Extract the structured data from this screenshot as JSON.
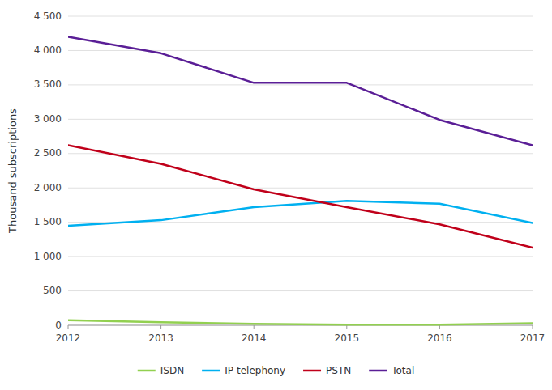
{
  "chart_data": {
    "type": "line",
    "y_label": "Thousand subscriptions",
    "x": [
      2012,
      2013,
      2014,
      2015,
      2016,
      2017
    ],
    "series": [
      {
        "name": "ISDN",
        "color": "#92d050",
        "values": [
          75,
          45,
          20,
          10,
          8,
          30
        ]
      },
      {
        "name": "IP-telephony",
        "color": "#00b0f0",
        "values": [
          1450,
          1530,
          1720,
          1810,
          1770,
          1490
        ]
      },
      {
        "name": "PSTN",
        "color": "#c0001a",
        "values": [
          2620,
          2350,
          1980,
          1720,
          1470,
          1130
        ]
      },
      {
        "name": "Total",
        "color": "#5a1e96",
        "values": [
          4200,
          3960,
          3530,
          3530,
          2990,
          2620
        ]
      }
    ],
    "xlim": [
      2012,
      2017
    ],
    "xticks": [
      2012,
      2013,
      2014,
      2015,
      2016,
      2017
    ],
    "ylim": [
      0,
      4500
    ],
    "yticks": [
      0,
      500,
      {
        "value": 1000,
        "label": "1 000"
      },
      {
        "value": 1500,
        "label": "1 500"
      },
      {
        "value": 2000,
        "label": "2 000"
      },
      {
        "value": 2500,
        "label": "2 500"
      },
      {
        "value": 3000,
        "label": "3 000"
      },
      {
        "value": 3500,
        "label": "3 500"
      },
      {
        "value": 4000,
        "label": "4 000"
      },
      {
        "value": 4500,
        "label": "4 500"
      }
    ],
    "grid": true,
    "legend": "bottom"
  }
}
